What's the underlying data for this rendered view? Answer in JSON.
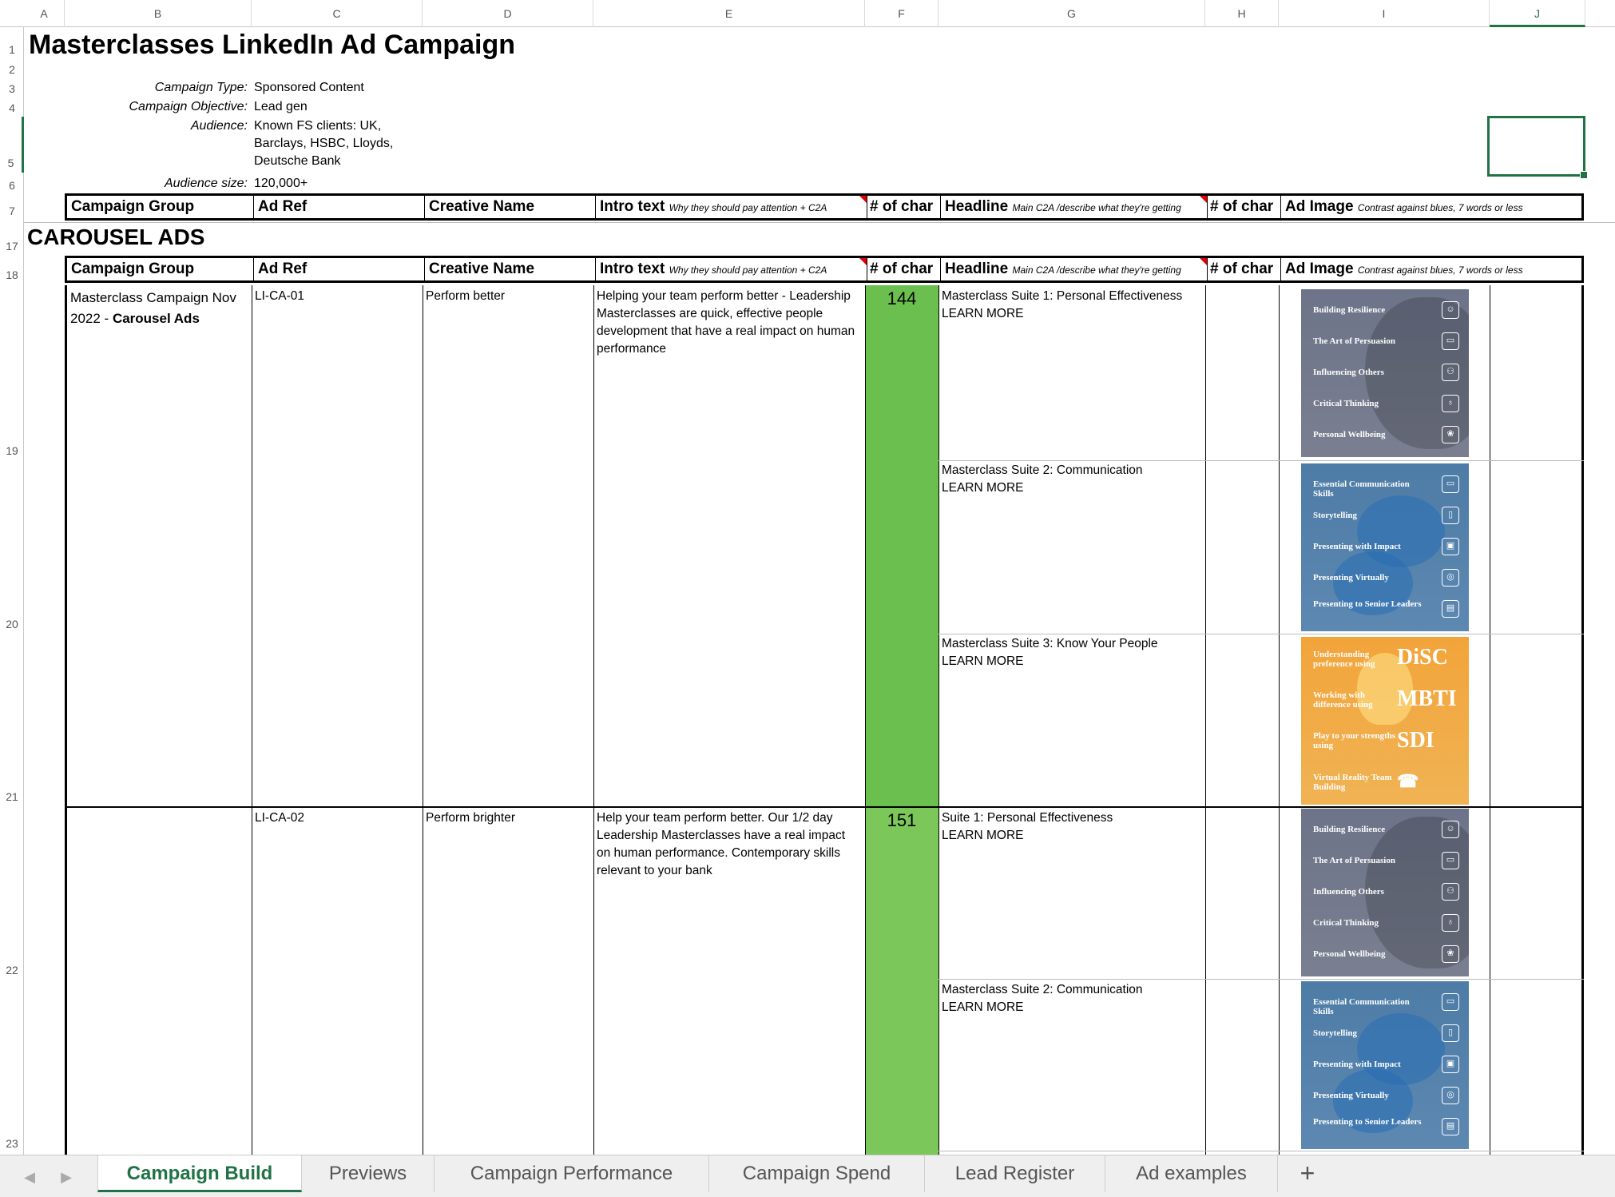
{
  "columns": [
    "A",
    "B",
    "C",
    "D",
    "E",
    "F",
    "G",
    "H",
    "I",
    "J"
  ],
  "rows": [
    "1",
    "2",
    "3",
    "4",
    "5",
    "6",
    "7",
    "17",
    "18",
    "19",
    "20",
    "21",
    "22",
    "23"
  ],
  "title": "Masterclasses LinkedIn Ad Campaign",
  "info": [
    {
      "label": "Campaign Type:",
      "value": "Sponsored Content"
    },
    {
      "label": "Campaign Objective:",
      "value": "Lead gen"
    },
    {
      "label": "Audience:",
      "value": "Known FS clients: UK,",
      "value2": "Barclays, HSBC, Lloyds,",
      "value3": "Deutsche Bank"
    },
    {
      "label": "Audience size:",
      "value": "120,000+"
    }
  ],
  "headers": {
    "campaign_group": "Campaign Group",
    "ad_ref": "Ad Ref",
    "creative_name": "Creative Name",
    "intro_text": "Intro text",
    "intro_sub": "Why they should pay attention + C2A",
    "num_char": "# of char",
    "headline": "Headline",
    "headline_sub": "Main C2A /describe what they're getting",
    "num_char2": "# of char",
    "ad_image": "Ad Image",
    "ad_image_sub": "Contrast against blues, 7 words or less"
  },
  "section_title": "CAROUSEL ADS",
  "ads": [
    {
      "group_line1": "Masterclass Campaign Nov",
      "group_line2": "2022 - ",
      "group_bold": "Carousel Ads",
      "ref": "LI-CA-01",
      "creative": "Perform better",
      "intro": "Helping your team perform better - Leadership Masterclasses are quick, effective people development that have a real impact on human performance",
      "count": "144",
      "headlines": [
        {
          "line1": "Masterclass Suite 1: Personal Effectiveness",
          "line2": "LEARN MORE"
        },
        {
          "line1": "Masterclass Suite 2: Communication",
          "line2": "LEARN MORE"
        },
        {
          "line1": "Masterclass Suite 3: Know Your People",
          "line2": "LEARN MORE"
        }
      ]
    },
    {
      "ref": "LI-CA-02",
      "creative": "Perform brighter",
      "intro": "Help your team perform better. Our 1/2 day Leadership Masterclasses have a real impact on human performance. Contemporary skills relevant to your bank",
      "count": "151",
      "headlines": [
        {
          "line1": "Suite 1: Personal Effectiveness",
          "line2": "LEARN MORE"
        },
        {
          "line1": "Masterclass Suite 2: Communication",
          "line2": "LEARN MORE"
        }
      ]
    }
  ],
  "ad_images": {
    "suite1": [
      "Building Resilience",
      "The Art of Persuasion",
      "Influencing Others",
      "Critical Thinking",
      "Personal Wellbeing"
    ],
    "suite2": [
      "Essential Communication Skills",
      "Storytelling",
      "Presenting with Impact",
      "Presenting Virtually",
      "Presenting to Senior Leaders"
    ],
    "suite3": [
      {
        "text": "Understanding preference using",
        "big": "DiSC"
      },
      {
        "text": "Working with difference using",
        "big": "MBTI"
      },
      {
        "text": "Play to your strengths using",
        "big": "SDI"
      },
      {
        "text": "Virtual Reality Team Building",
        "big": ""
      }
    ]
  },
  "tabs": [
    "Campaign Build",
    "Previews",
    "Campaign Performance",
    "Campaign Spend",
    "Lead Register",
    "Ad examples"
  ],
  "active_tab": "Campaign Build",
  "colors": {
    "accent": "#217346",
    "count_fill": "#6bbf4e"
  }
}
